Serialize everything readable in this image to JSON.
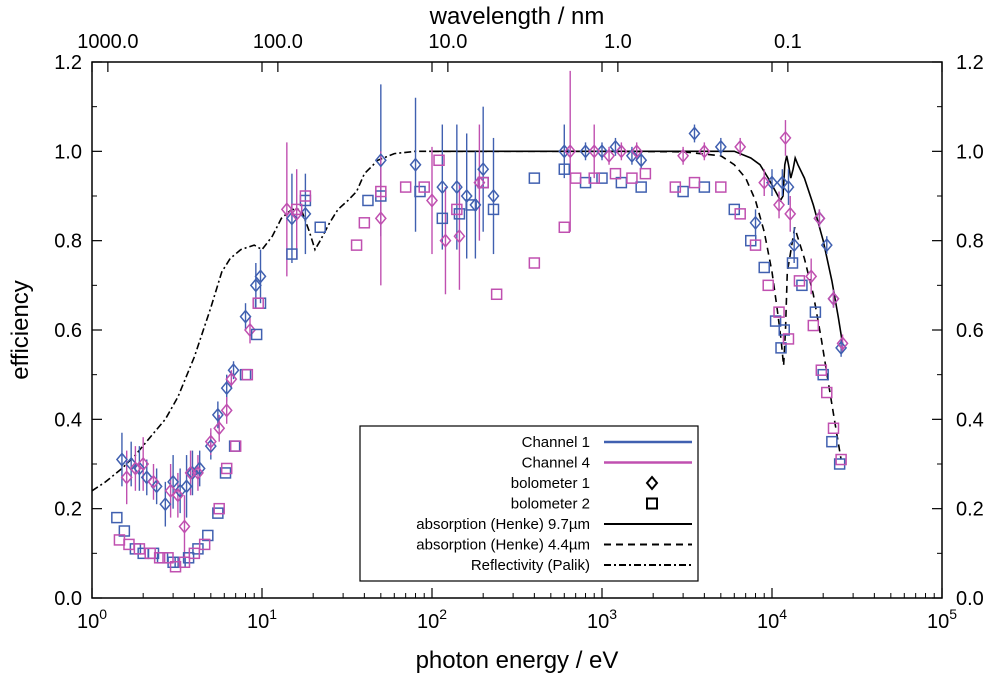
{
  "chart_data": {
    "type": "scatter",
    "xlabel": "photon energy / eV",
    "ylabel": "efficiency",
    "x2label": "wavelength / nm",
    "xscale": "log",
    "xlim": [
      1,
      100000
    ],
    "ylim": [
      0.0,
      1.2
    ],
    "grid": false,
    "legend_position": "bottom-center",
    "x_ticks": [
      {
        "value": 1,
        "base": "10",
        "exp": "0"
      },
      {
        "value": 10,
        "base": "10",
        "exp": "1"
      },
      {
        "value": 100,
        "base": "10",
        "exp": "2"
      },
      {
        "value": 1000,
        "base": "10",
        "exp": "3"
      },
      {
        "value": 10000,
        "base": "10",
        "exp": "4"
      },
      {
        "value": 100000,
        "base": "10",
        "exp": "5"
      }
    ],
    "y_ticks": [
      "0.0",
      "0.2",
      "0.4",
      "0.6",
      "0.8",
      "1.0",
      "1.2"
    ],
    "x2_ticks": [
      {
        "label": "1000.0",
        "energy": 1.2398
      },
      {
        "label": "100.0",
        "energy": 12.398
      },
      {
        "label": "10.0",
        "energy": 123.98
      },
      {
        "label": "1.0",
        "energy": 1239.8
      },
      {
        "label": "0.1",
        "energy": 12398
      }
    ],
    "colors": {
      "channel_1": "#4060b0",
      "channel_4": "#c050b0",
      "curve": "#000000"
    },
    "legend": [
      {
        "label": "Channel 1",
        "kind": "line-ch1"
      },
      {
        "label": "Channel 4",
        "kind": "line-ch4"
      },
      {
        "label": "bolometer 1",
        "kind": "diamond"
      },
      {
        "label": "bolometer 2",
        "kind": "square"
      },
      {
        "label": "absorption (Henke) 9.7µm",
        "kind": "solid"
      },
      {
        "label": "absorption (Henke) 4.4µm",
        "kind": "dashed"
      },
      {
        "label": "Reflectivity (Palik)",
        "kind": "dashdot"
      }
    ],
    "series": [
      {
        "name": "Reflectivity (Palik)",
        "style": "dashdot",
        "points": [
          [
            1.0,
            0.24
          ],
          [
            1.2,
            0.26
          ],
          [
            1.5,
            0.29
          ],
          [
            1.8,
            0.32
          ],
          [
            2.2,
            0.36
          ],
          [
            2.7,
            0.4
          ],
          [
            3.2,
            0.45
          ],
          [
            4.0,
            0.54
          ],
          [
            5.0,
            0.65
          ],
          [
            5.8,
            0.73
          ],
          [
            6.5,
            0.76
          ],
          [
            7.5,
            0.78
          ],
          [
            9,
            0.79
          ],
          [
            10,
            0.78
          ],
          [
            11.5,
            0.81
          ],
          [
            13,
            0.85
          ],
          [
            15,
            0.87
          ],
          [
            17,
            0.87
          ],
          [
            19,
            0.82
          ],
          [
            20.5,
            0.78
          ],
          [
            22,
            0.8
          ],
          [
            25,
            0.84
          ],
          [
            28,
            0.87
          ],
          [
            32,
            0.89
          ],
          [
            36,
            0.91
          ],
          [
            40,
            0.95
          ],
          [
            48,
            0.98
          ],
          [
            60,
            0.995
          ],
          [
            80,
            1.0
          ],
          [
            100,
            1.0
          ]
        ]
      },
      {
        "name": "absorption (Henke) 9.7µm",
        "style": "solid",
        "points": [
          [
            100,
            1.0
          ],
          [
            500,
            1.0
          ],
          [
            1000,
            1.0
          ],
          [
            3000,
            1.0
          ],
          [
            6000,
            1.0
          ],
          [
            7500,
            0.985
          ],
          [
            8500,
            0.97
          ],
          [
            9500,
            0.94
          ],
          [
            10500,
            0.91
          ],
          [
            11200,
            0.89
          ],
          [
            11600,
            0.9
          ],
          [
            11900,
            0.97
          ],
          [
            12200,
            0.99
          ],
          [
            12500,
            0.97
          ],
          [
            12900,
            0.94
          ],
          [
            13300,
            0.96
          ],
          [
            13700,
            0.985
          ],
          [
            14200,
            0.97
          ],
          [
            15500,
            0.94
          ],
          [
            17500,
            0.88
          ],
          [
            20000,
            0.8
          ],
          [
            22500,
            0.71
          ],
          [
            24500,
            0.63
          ],
          [
            26000,
            0.57
          ]
        ]
      },
      {
        "name": "absorption (Henke) 4.4µm",
        "style": "dashed",
        "points": [
          [
            100,
            1.0
          ],
          [
            1000,
            1.0
          ],
          [
            3000,
            0.999
          ],
          [
            5000,
            0.99
          ],
          [
            6000,
            0.97
          ],
          [
            7000,
            0.94
          ],
          [
            8000,
            0.89
          ],
          [
            9000,
            0.82
          ],
          [
            10000,
            0.73
          ],
          [
            10700,
            0.65
          ],
          [
            11300,
            0.58
          ],
          [
            11700,
            0.52
          ],
          [
            12000,
            0.6
          ],
          [
            12300,
            0.73
          ],
          [
            12700,
            0.76
          ],
          [
            13200,
            0.8
          ],
          [
            13600,
            0.83
          ],
          [
            14100,
            0.81
          ],
          [
            15500,
            0.76
          ],
          [
            17500,
            0.68
          ],
          [
            19500,
            0.58
          ],
          [
            21500,
            0.48
          ],
          [
            23500,
            0.39
          ],
          [
            25500,
            0.31
          ]
        ]
      },
      {
        "name": "Channel 1 bolometer 1",
        "channel": "ch1",
        "marker": "diamond",
        "points": [
          [
            1.5,
            0.31,
            0.06
          ],
          [
            1.7,
            0.3,
            0.05
          ],
          [
            1.9,
            0.29,
            0.05
          ],
          [
            2.1,
            0.27,
            0.04
          ],
          [
            2.4,
            0.25,
            0.04
          ],
          [
            2.7,
            0.21,
            0.05
          ],
          [
            3.0,
            0.26,
            0.06
          ],
          [
            3.3,
            0.24,
            0.05
          ],
          [
            3.6,
            0.25,
            0.07
          ],
          [
            3.9,
            0.28,
            0.05
          ],
          [
            4.3,
            0.29,
            0.04
          ],
          [
            5.0,
            0.34,
            0.03
          ],
          [
            5.5,
            0.41,
            0.03
          ],
          [
            6.2,
            0.47,
            0.03
          ],
          [
            6.8,
            0.51,
            0.02
          ],
          [
            8.0,
            0.63,
            0.03
          ],
          [
            9.2,
            0.7,
            0.05
          ],
          [
            9.8,
            0.72,
            0.06
          ],
          [
            15,
            0.85,
            0.1
          ],
          [
            18,
            0.86,
            0.09
          ],
          [
            50,
            0.98,
            0.17
          ],
          [
            80,
            0.97,
            0.15
          ],
          [
            115,
            0.92,
            0.14
          ],
          [
            140,
            0.92,
            0.14
          ],
          [
            160,
            0.9,
            0.14
          ],
          [
            180,
            0.88,
            0.12
          ],
          [
            200,
            0.96,
            0.14
          ],
          [
            230,
            0.9,
            0.13
          ],
          [
            600,
            1.0,
            0.06
          ],
          [
            800,
            1.0,
            0.02
          ],
          [
            1000,
            1.0,
            0.02
          ],
          [
            1200,
            1.01,
            0.02
          ],
          [
            1500,
            0.99,
            0.02
          ],
          [
            1700,
            0.98,
            0.02
          ],
          [
            3500,
            1.04,
            0.02
          ],
          [
            5000,
            1.01,
            0.02
          ],
          [
            8000,
            0.84,
            0.03
          ],
          [
            10000,
            0.93,
            0.03
          ],
          [
            11500,
            0.93,
            0.03
          ],
          [
            12500,
            0.92,
            0.04
          ],
          [
            13500,
            0.79,
            0.04
          ],
          [
            19000,
            0.85,
            0.02
          ],
          [
            21000,
            0.79,
            0.02
          ],
          [
            23000,
            0.67,
            0.02
          ],
          [
            25500,
            0.56,
            0.02
          ]
        ]
      },
      {
        "name": "Channel 4 bolometer 1",
        "channel": "ch4",
        "marker": "diamond",
        "points": [
          [
            1.6,
            0.27,
            0.06
          ],
          [
            1.8,
            0.29,
            0.05
          ],
          [
            2.0,
            0.3,
            0.06
          ],
          [
            2.3,
            0.26,
            0.04
          ],
          [
            2.9,
            0.24,
            0.06
          ],
          [
            3.2,
            0.23,
            0.05
          ],
          [
            3.5,
            0.16,
            0.07
          ],
          [
            3.8,
            0.28,
            0.05
          ],
          [
            4.2,
            0.28,
            0.04
          ],
          [
            5.0,
            0.35,
            0.03
          ],
          [
            5.6,
            0.38,
            0.03
          ],
          [
            6.2,
            0.42,
            0.03
          ],
          [
            6.6,
            0.49,
            0.02
          ],
          [
            8.5,
            0.6,
            0.03
          ],
          [
            14,
            0.87,
            0.15
          ],
          [
            16,
            0.86,
            0.1
          ],
          [
            50,
            0.85,
            0.15
          ],
          [
            100,
            0.89,
            0.12
          ],
          [
            120,
            0.8,
            0.12
          ],
          [
            145,
            0.81,
            0.12
          ],
          [
            190,
            0.93,
            0.13
          ],
          [
            650,
            1.0,
            0.18
          ],
          [
            900,
            1.0,
            0.06
          ],
          [
            1100,
            0.99,
            0.02
          ],
          [
            1300,
            1.0,
            0.02
          ],
          [
            1600,
            1.0,
            0.02
          ],
          [
            3000,
            0.99,
            0.02
          ],
          [
            4000,
            1.0,
            0.02
          ],
          [
            6500,
            1.01,
            0.02
          ],
          [
            9000,
            0.93,
            0.03
          ],
          [
            11000,
            0.88,
            0.03
          ],
          [
            12000,
            1.03,
            0.04
          ],
          [
            12800,
            0.86,
            0.04
          ],
          [
            17000,
            0.72,
            0.04
          ],
          [
            19000,
            0.85,
            0.02
          ],
          [
            23000,
            0.67,
            0.02
          ],
          [
            26000,
            0.57,
            0.02
          ]
        ]
      },
      {
        "name": "Channel 1 bolometer 2",
        "channel": "ch1",
        "marker": "square",
        "points": [
          [
            1.4,
            0.18
          ],
          [
            1.55,
            0.15
          ],
          [
            1.8,
            0.11
          ],
          [
            2.0,
            0.1
          ],
          [
            2.3,
            0.1
          ],
          [
            2.6,
            0.09
          ],
          [
            3.0,
            0.08
          ],
          [
            3.3,
            0.08
          ],
          [
            3.7,
            0.09
          ],
          [
            4.2,
            0.11
          ],
          [
            4.8,
            0.14
          ],
          [
            5.5,
            0.19
          ],
          [
            6.1,
            0.28
          ],
          [
            6.9,
            0.34
          ],
          [
            8.0,
            0.5
          ],
          [
            9.3,
            0.59
          ],
          [
            9.8,
            0.66
          ],
          [
            15,
            0.77
          ],
          [
            18,
            0.89
          ],
          [
            22,
            0.83
          ],
          [
            42,
            0.89
          ],
          [
            50,
            0.9
          ],
          [
            85,
            0.91
          ],
          [
            115,
            0.85
          ],
          [
            145,
            0.86
          ],
          [
            170,
            0.88
          ],
          [
            200,
            0.93
          ],
          [
            230,
            0.87
          ],
          [
            400,
            0.94
          ],
          [
            600,
            0.96
          ],
          [
            800,
            0.93
          ],
          [
            1000,
            0.94
          ],
          [
            1300,
            0.93
          ],
          [
            1700,
            0.92
          ],
          [
            3000,
            0.91
          ],
          [
            4000,
            0.92
          ],
          [
            6000,
            0.87
          ],
          [
            7500,
            0.8
          ],
          [
            9000,
            0.74
          ],
          [
            10500,
            0.62
          ],
          [
            11300,
            0.56
          ],
          [
            11800,
            0.6
          ],
          [
            13200,
            0.75
          ],
          [
            15000,
            0.7
          ],
          [
            18000,
            0.64
          ],
          [
            20000,
            0.5
          ],
          [
            22500,
            0.35
          ],
          [
            25000,
            0.3
          ]
        ]
      },
      {
        "name": "Channel 4 bolometer 2",
        "channel": "ch4",
        "marker": "square",
        "points": [
          [
            1.45,
            0.13
          ],
          [
            1.65,
            0.12
          ],
          [
            1.9,
            0.11
          ],
          [
            2.2,
            0.1
          ],
          [
            2.5,
            0.09
          ],
          [
            2.8,
            0.09
          ],
          [
            3.1,
            0.07
          ],
          [
            3.5,
            0.08
          ],
          [
            4.0,
            0.1
          ],
          [
            4.6,
            0.12
          ],
          [
            5.6,
            0.2
          ],
          [
            6.2,
            0.29
          ],
          [
            7.0,
            0.34
          ],
          [
            8.2,
            0.5
          ],
          [
            9.5,
            0.66
          ],
          [
            16,
            0.87
          ],
          [
            18,
            0.9
          ],
          [
            36,
            0.79
          ],
          [
            40,
            0.84
          ],
          [
            50,
            0.91
          ],
          [
            70,
            0.92
          ],
          [
            90,
            0.92
          ],
          [
            110,
            0.98
          ],
          [
            140,
            0.87
          ],
          [
            200,
            0.93
          ],
          [
            240,
            0.68
          ],
          [
            400,
            0.75
          ],
          [
            600,
            0.83
          ],
          [
            700,
            0.94
          ],
          [
            900,
            0.94
          ],
          [
            1200,
            0.95
          ],
          [
            1500,
            0.94
          ],
          [
            1800,
            0.95
          ],
          [
            2700,
            0.92
          ],
          [
            3500,
            0.93
          ],
          [
            5000,
            0.92
          ],
          [
            6500,
            0.86
          ],
          [
            8000,
            0.79
          ],
          [
            9500,
            0.7
          ],
          [
            11000,
            0.64
          ],
          [
            12500,
            0.58
          ],
          [
            14500,
            0.71
          ],
          [
            17500,
            0.61
          ],
          [
            19500,
            0.51
          ],
          [
            21000,
            0.46
          ],
          [
            23000,
            0.38
          ],
          [
            25500,
            0.31
          ]
        ]
      }
    ]
  }
}
